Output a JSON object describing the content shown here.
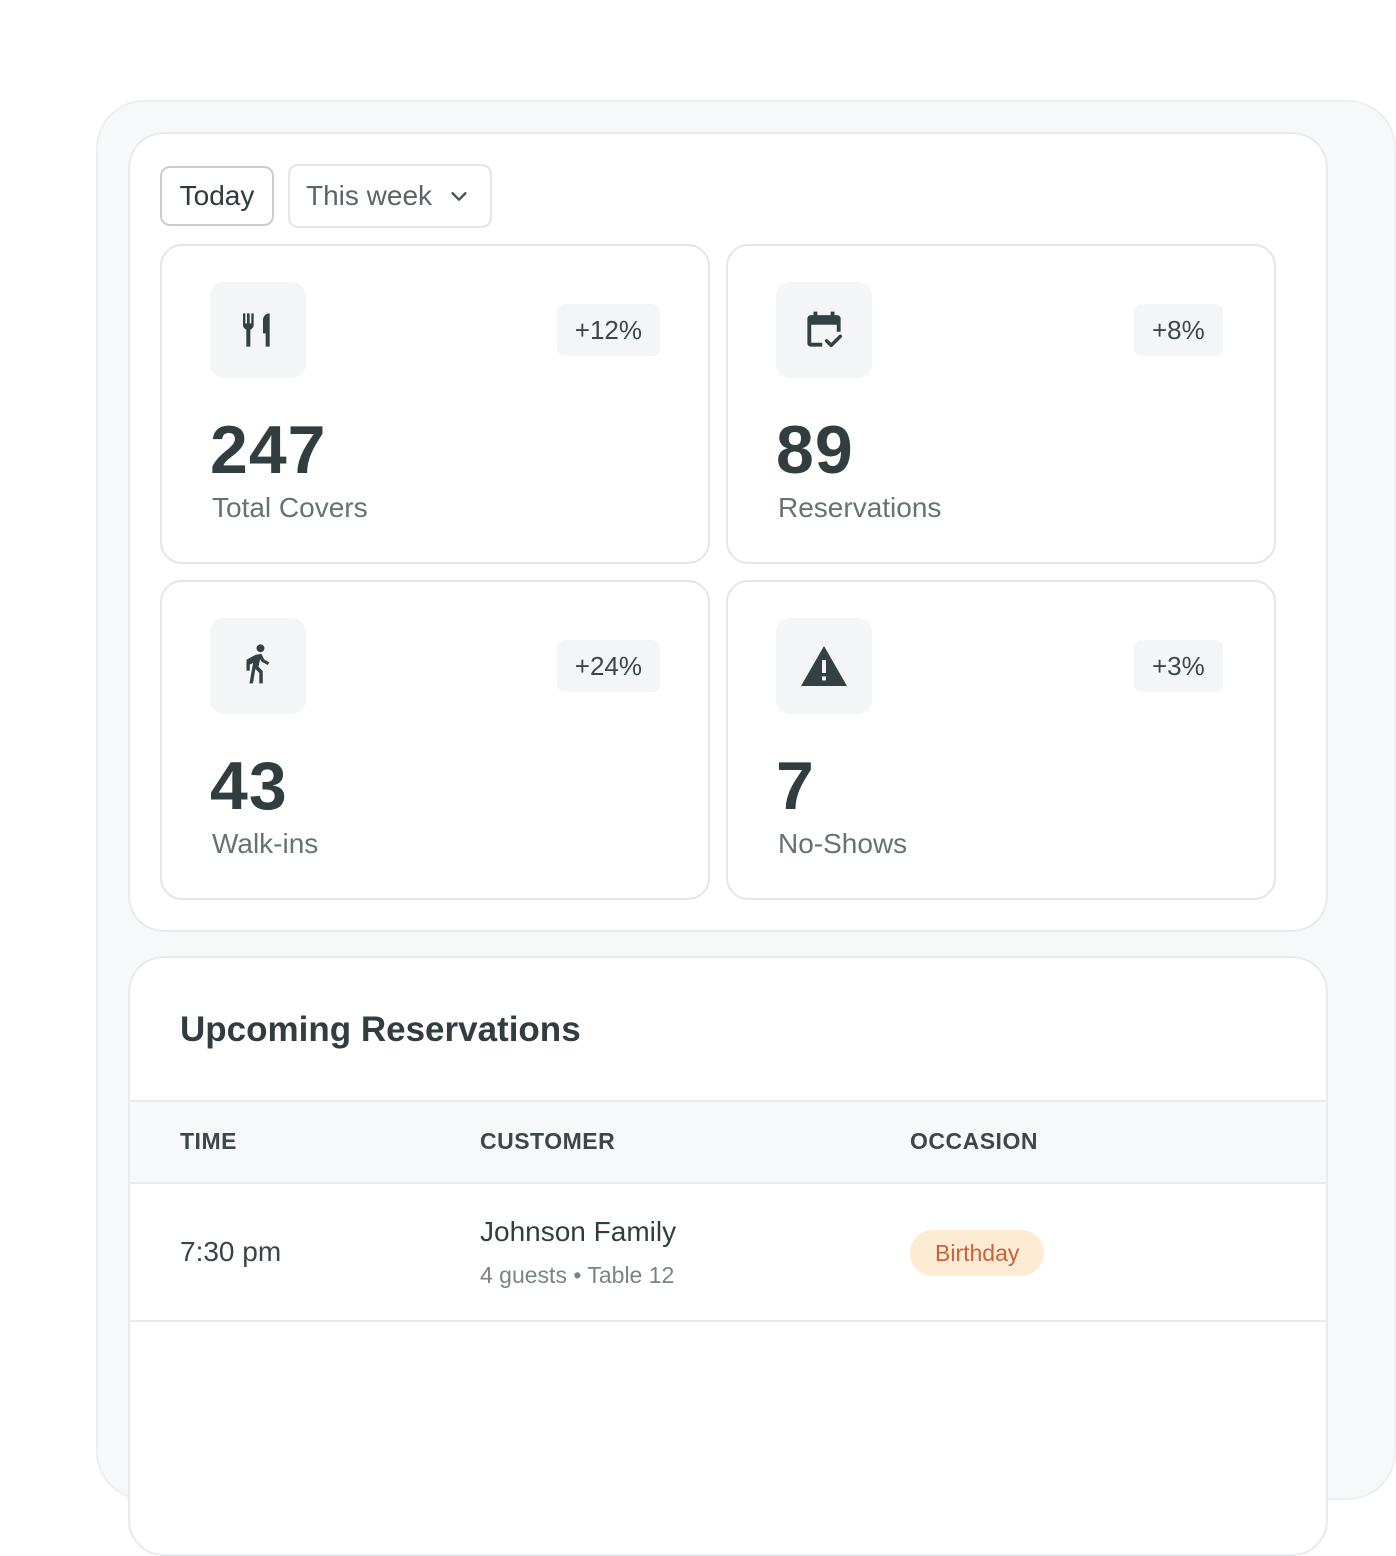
{
  "filters": {
    "today_label": "Today",
    "range_label": "This week"
  },
  "stats": [
    {
      "icon": "utensils-icon",
      "value": "247",
      "label": "Total Covers",
      "change": "+12%"
    },
    {
      "icon": "calendar-check-icon",
      "value": "89",
      "label": "Reservations",
      "change": "+8%"
    },
    {
      "icon": "walking-person-icon",
      "value": "43",
      "label": "Walk-ins",
      "change": "+24%"
    },
    {
      "icon": "warning-triangle-icon",
      "value": "7",
      "label": "No-Shows",
      "change": "+3%"
    }
  ],
  "reservations": {
    "title": "Upcoming Reservations",
    "columns": [
      "TIME",
      "CUSTOMER",
      "OCCASION"
    ],
    "rows": [
      {
        "time": "7:30 pm",
        "customer": "Johnson Family",
        "details": "4 guests • Table 12",
        "occasion": "Birthday"
      }
    ]
  },
  "colors": {
    "accent_badge_bg": "#fdebd3",
    "accent_badge_text": "#c9623a"
  }
}
